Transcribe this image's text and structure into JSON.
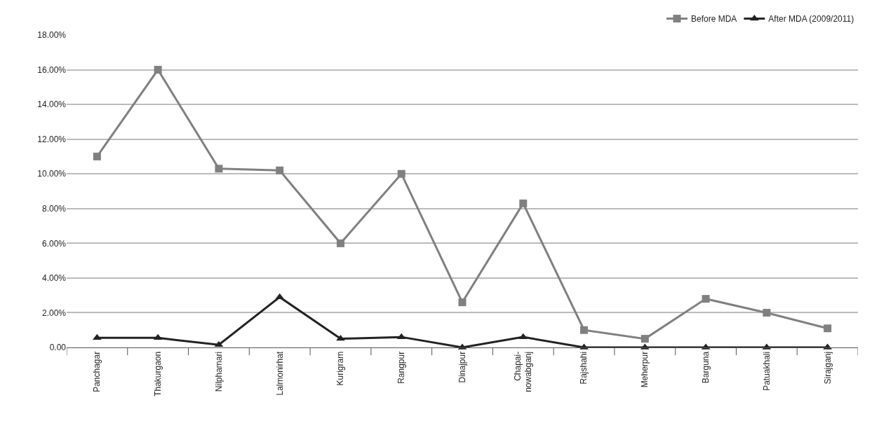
{
  "chart_data": {
    "type": "line",
    "categories": [
      "Panchagar",
      "Thakurgaon",
      "Nilphamari",
      "Lalmonirhat",
      "Kurigram",
      "Rangpur",
      "Dinajpur",
      "Chapai-\nnowabganj",
      "Rajshahi",
      "Meherpur",
      "Barguna",
      "Patuakhali",
      "Sirajganj"
    ],
    "series": [
      {
        "name": "Before MDA",
        "color": "#808080",
        "marker": "square",
        "values": [
          11.0,
          16.0,
          10.3,
          10.2,
          6.0,
          10.0,
          2.6,
          8.3,
          1.0,
          0.5,
          2.8,
          2.0,
          1.1
        ]
      },
      {
        "name": "After MDA (2009/2011)",
        "color": "#222222",
        "marker": "triangle",
        "values": [
          0.55,
          0.55,
          0.15,
          2.9,
          0.5,
          0.6,
          0.0,
          0.6,
          0.0,
          0.0,
          0.0,
          0.0,
          0.0
        ]
      }
    ],
    "ylim": [
      0,
      18
    ],
    "yticks": [
      {
        "value": 0,
        "label": "0.00"
      },
      {
        "value": 2,
        "label": "2.00%"
      },
      {
        "value": 4,
        "label": "4.00%"
      },
      {
        "value": 6,
        "label": "6.00%"
      },
      {
        "value": 8,
        "label": "8.00%"
      },
      {
        "value": 10,
        "label": "10.00%"
      },
      {
        "value": 12,
        "label": "12.00%"
      },
      {
        "value": 14,
        "label": "14.00%"
      },
      {
        "value": 16,
        "label": "16.00%"
      },
      {
        "value": 18,
        "label": "18.00%"
      }
    ],
    "grid": "y",
    "legend": "top right",
    "line_style": "solid"
  }
}
